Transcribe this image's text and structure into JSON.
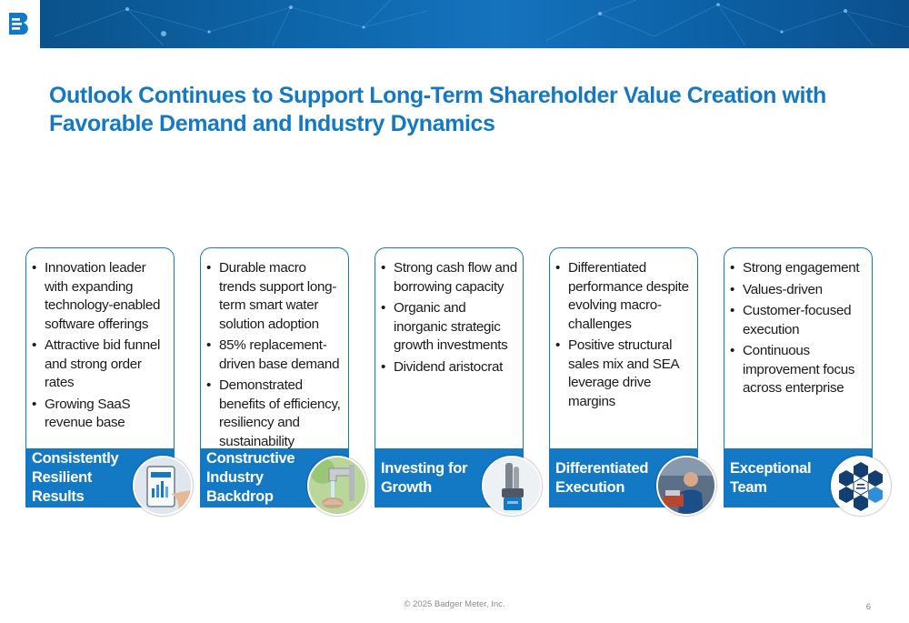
{
  "header": {
    "logo_name": "badger-meter-logo"
  },
  "title": {
    "line1": "Outlook Continues to Support Long-Term Shareholder Value Creation with",
    "line2": "Favorable Demand and Industry Dynamics"
  },
  "cards": [
    {
      "bullets": [
        "Innovation leader with expanding technology-enabled software offerings",
        "Attractive bid funnel and strong order rates",
        "Growing SaaS revenue base"
      ],
      "label_lines": [
        "Consistently",
        "Resilient",
        "Results"
      ],
      "image_icon": "tablet-dashboard-icon"
    },
    {
      "bullets": [
        "Durable macro trends support long-term smart water solution adoption",
        "85% replacement-driven base demand",
        "Demonstrated benefits of efficiency, resiliency and sustainability"
      ],
      "label_lines": [
        "Constructive",
        "Industry",
        "Backdrop"
      ],
      "image_icon": "water-faucet-icon"
    },
    {
      "bullets": [
        "Strong cash flow and borrowing capacity",
        "Organic and inorganic strategic growth investments",
        "Dividend aristocrat"
      ],
      "label_lines": [
        "Investing for",
        "Growth"
      ],
      "image_icon": "water-sensor-icon"
    },
    {
      "bullets": [
        "Differentiated performance despite evolving macro-challenges",
        "Positive structural sales mix and SEA leverage drive margins"
      ],
      "label_lines": [
        "Differentiated",
        "Execution"
      ],
      "image_icon": "factory-worker-icon"
    },
    {
      "bullets": [
        "Strong engagement",
        "Values-driven",
        "Customer-focused execution",
        "Continuous improvement focus across enterprise"
      ],
      "label_lines": [
        "Exceptional",
        "Team"
      ],
      "image_icon": "core-values-hexagon-icon"
    }
  ],
  "footer": {
    "copyright": "© 2025 Badger Meter, Inc.",
    "page_number": "6"
  },
  "colors": {
    "accent": "#1479c4",
    "banner": "#0d63a6",
    "text": "#1a1a1a"
  }
}
